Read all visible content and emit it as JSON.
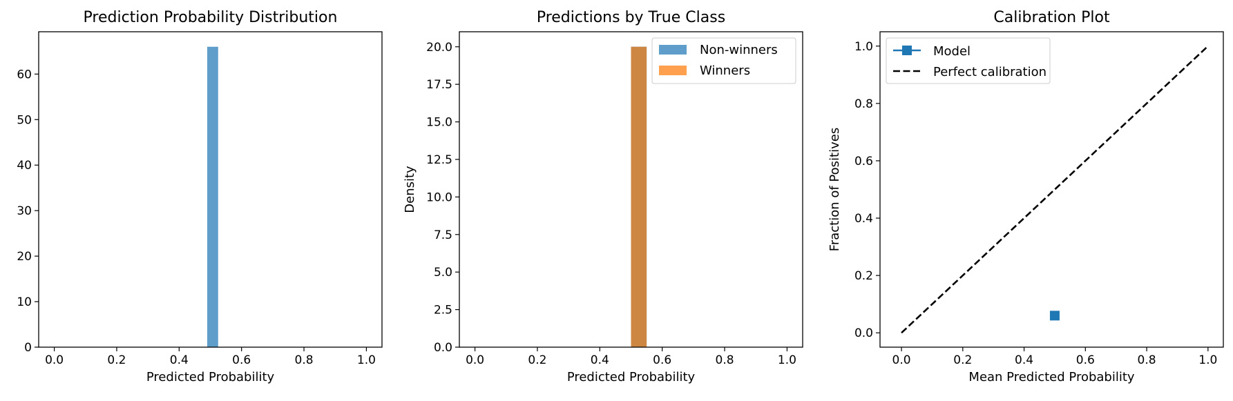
{
  "chart_data": [
    {
      "type": "bar",
      "title": "Prediction Probability Distribution",
      "xlabel": "Predicted Probability",
      "ylabel": "",
      "xlim": [
        -0.05,
        1.05
      ],
      "ylim": [
        0,
        69.3
      ],
      "xticks": [
        0.0,
        0.2,
        0.4,
        0.6,
        0.8,
        1.0
      ],
      "xtick_labels": [
        "0.0",
        "0.2",
        "0.4",
        "0.6",
        "0.8",
        "1.0"
      ],
      "yticks": [
        0,
        10,
        20,
        30,
        40,
        50,
        60
      ],
      "ytick_labels": [
        "0",
        "10",
        "20",
        "30",
        "40",
        "50",
        "60"
      ],
      "grid": false,
      "series": [
        {
          "color": "#5f9ecb",
          "bars": [
            {
              "x0": 0.49,
              "x1": 0.525,
              "y": 66
            }
          ]
        }
      ]
    },
    {
      "type": "bar",
      "title": "Predictions by True Class",
      "xlabel": "Predicted Probability",
      "ylabel": "Density",
      "xlim": [
        -0.05,
        1.05
      ],
      "ylim": [
        0,
        21.0
      ],
      "xticks": [
        0.0,
        0.2,
        0.4,
        0.6,
        0.8,
        1.0
      ],
      "xtick_labels": [
        "0.0",
        "0.2",
        "0.4",
        "0.6",
        "0.8",
        "1.0"
      ],
      "yticks": [
        0.0,
        2.5,
        5.0,
        7.5,
        10.0,
        12.5,
        15.0,
        17.5,
        20.0
      ],
      "ytick_labels": [
        "0.0",
        "2.5",
        "5.0",
        "7.5",
        "10.0",
        "12.5",
        "15.0",
        "17.5",
        "20.0"
      ],
      "grid": false,
      "legend_position": "upper right",
      "series": [
        {
          "name": "Non-winners",
          "color": "#5f9ecb",
          "bars": [
            {
              "x0": 0.5,
              "x1": 0.55,
              "y": 20
            }
          ]
        },
        {
          "name": "Winners",
          "color": "#ffa04f",
          "bars": [
            {
              "x0": 0.5,
              "x1": 0.55,
              "y": 20
            }
          ]
        }
      ],
      "overlap_color": "#cd8743"
    },
    {
      "type": "line",
      "title": "Calibration Plot",
      "xlabel": "Mean Predicted Probability",
      "ylabel": "Fraction of Positives",
      "xlim": [
        -0.07,
        1.05
      ],
      "ylim": [
        -0.05,
        1.05
      ],
      "xticks": [
        0.0,
        0.2,
        0.4,
        0.6,
        0.8,
        1.0
      ],
      "xtick_labels": [
        "0.0",
        "0.2",
        "0.4",
        "0.6",
        "0.8",
        "1.0"
      ],
      "yticks": [
        0.0,
        0.2,
        0.4,
        0.6,
        0.8,
        1.0
      ],
      "ytick_labels": [
        "0.0",
        "0.2",
        "0.4",
        "0.6",
        "0.8",
        "1.0"
      ],
      "grid": false,
      "legend_position": "upper left",
      "series": [
        {
          "name": "Model",
          "color": "#1f77b4",
          "marker": "square",
          "x": [
            0.5
          ],
          "y": [
            0.06
          ]
        },
        {
          "name": "Perfect calibration",
          "color": "#000000",
          "style": "dashed",
          "x": [
            0,
            1
          ],
          "y": [
            0,
            1
          ]
        }
      ]
    }
  ]
}
